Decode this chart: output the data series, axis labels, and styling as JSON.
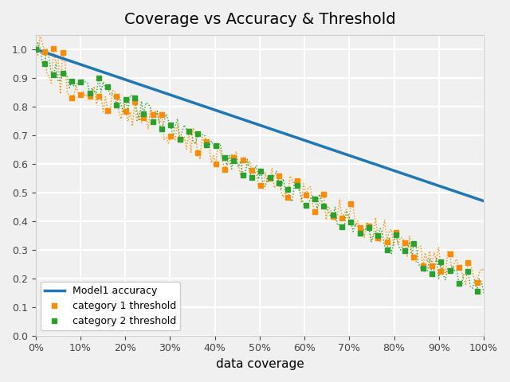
{
  "title": "Coverage vs Accuracy & Threshold",
  "xlabel": "data coverage",
  "ylabel": "",
  "model1_label": "Model1 accuracy",
  "cat1_label": "category 1 threshold",
  "cat2_label": "category 2 threshold",
  "model1_color": "#1f77b4",
  "cat1_color": "#ff8c00",
  "cat2_color": "#2ca02c",
  "xlim": [
    0,
    1
  ],
  "ylim": [
    0,
    1.05
  ],
  "yticks": [
    0.0,
    0.1,
    0.2,
    0.3,
    0.4,
    0.5,
    0.6,
    0.7,
    0.8,
    0.9,
    1.0
  ],
  "xticks": [
    0,
    0.1,
    0.2,
    0.3,
    0.4,
    0.5,
    0.6,
    0.7,
    0.8,
    0.9,
    1.0
  ],
  "background_color": "#f0f0f0",
  "grid_color": "white"
}
